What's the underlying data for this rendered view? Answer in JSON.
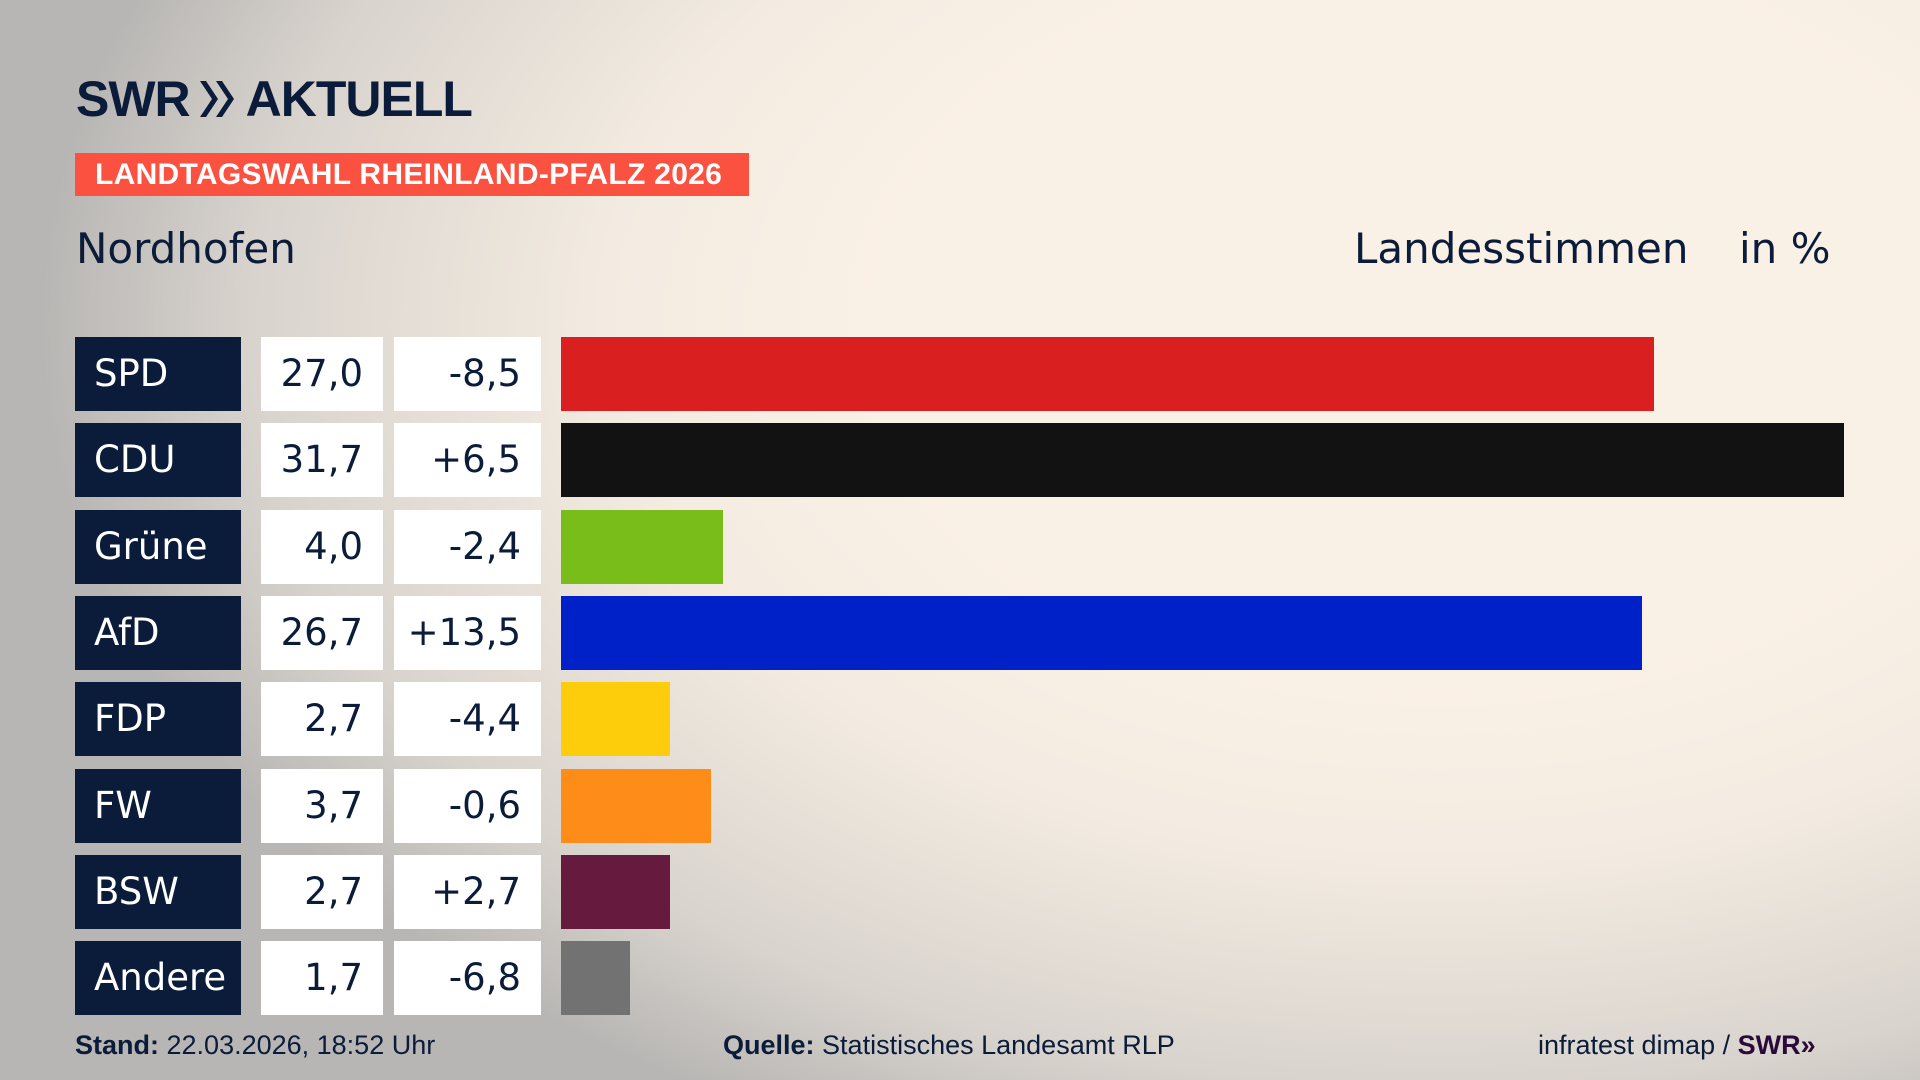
{
  "header": {
    "logo": "SWR» AKTUELL",
    "banner": "LANDTAGSWAHL RHEINLAND-PFALZ 2026",
    "location": "Nordhofen",
    "measure": "Landesstimmen",
    "unit": "in %"
  },
  "chart_data": {
    "type": "bar",
    "orientation": "horizontal",
    "categories": [
      "SPD",
      "CDU",
      "Grüne",
      "AfD",
      "FDP",
      "FW",
      "BSW",
      "Andere"
    ],
    "values": [
      27.0,
      31.7,
      4.0,
      26.7,
      2.7,
      3.7,
      2.7,
      1.7
    ],
    "value_labels": [
      "27,0",
      "31,7",
      "4,0",
      "26,7",
      "2,7",
      "3,7",
      "2,7",
      "1,7"
    ],
    "diff_labels": [
      "-8,5",
      "+6,5",
      "-2,4",
      "+13,5",
      "-4,4",
      "-0,6",
      "+2,7",
      "-6,8"
    ],
    "colors": [
      "#d91f1f",
      "#121212",
      "#79bd1a",
      "#0020c8",
      "#fdcc0b",
      "#fd8c19",
      "#661a3e",
      "#727272"
    ],
    "xlim": [
      0,
      31.7
    ],
    "grid": false
  },
  "footer": {
    "stand_label": "Stand:",
    "stand_value": "22.03.2026, 18:52 Uhr",
    "source_label": "Quelle:",
    "source_value": "Statistisches Landesamt RLP",
    "credit": "infratest dimap / ",
    "credit_logo": "SWR»"
  }
}
